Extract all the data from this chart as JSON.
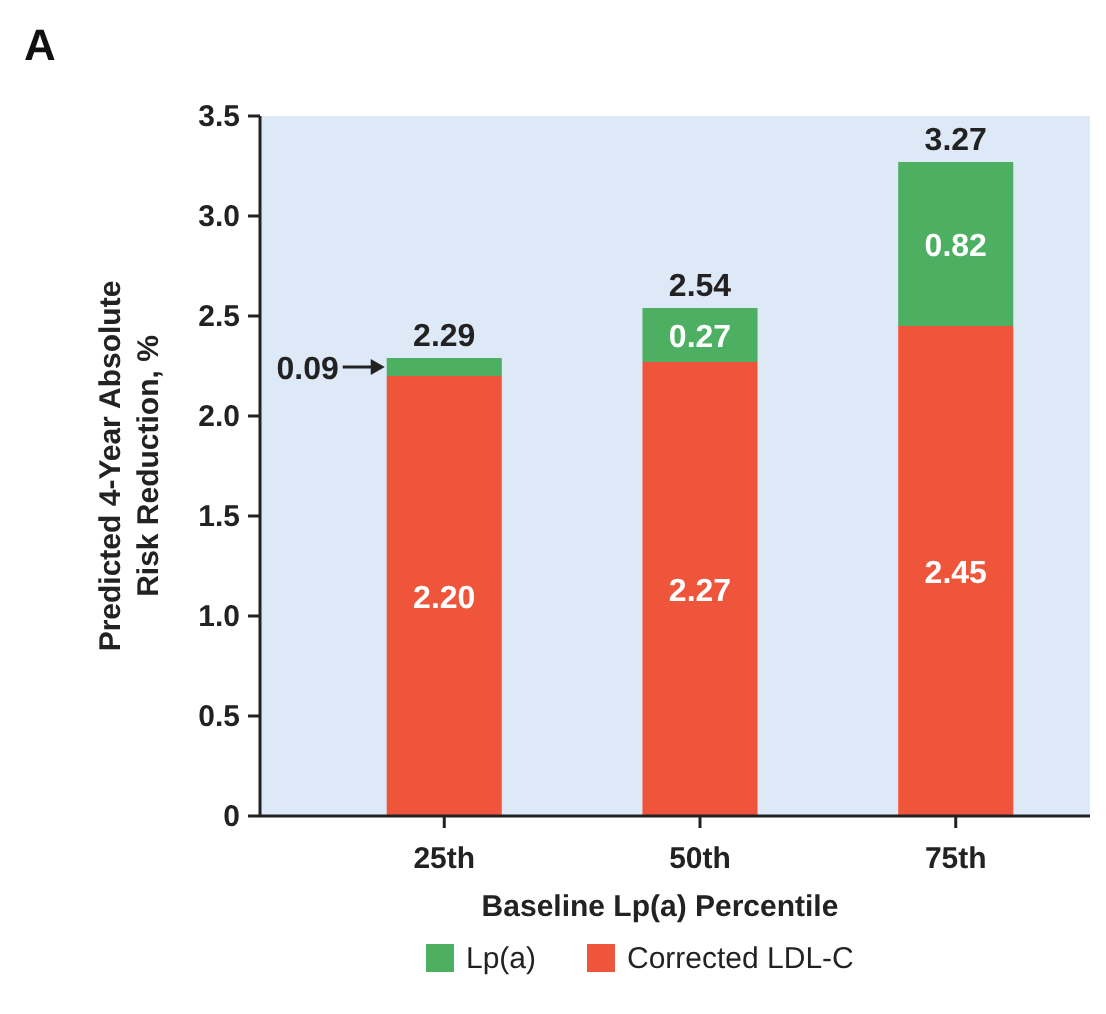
{
  "chart_data": {
    "type": "bar",
    "title": "A",
    "xlabel": "Baseline Lp(a) Percentile",
    "ylabel": "Predicted 4-Year Absolute Risk Reduction, %",
    "categories": [
      "25th",
      "50th",
      "75th"
    ],
    "stacked": true,
    "series": [
      {
        "name": "Corrected LDL-C",
        "color": "#ef553b",
        "values": [
          2.2,
          2.27,
          2.45
        ],
        "value_labels": [
          "2.20",
          "2.27",
          "2.45"
        ]
      },
      {
        "name": "Lp(a)",
        "color": "#4caf62",
        "values": [
          0.09,
          0.27,
          0.82
        ],
        "value_labels": [
          "0.09",
          "0.27",
          "0.82"
        ]
      }
    ],
    "totals": [
      "2.29",
      "2.54",
      "3.27"
    ],
    "ylim": [
      0,
      3.5
    ],
    "yticks": [
      0,
      {
        "value": 0.5,
        "label": "0.5"
      },
      {
        "value": 1,
        "label": "1.0"
      },
      {
        "value": 1.5,
        "label": "1.5"
      },
      {
        "value": 2,
        "label": "2.0"
      },
      {
        "value": 2.5,
        "label": "2.5"
      },
      {
        "value": 3,
        "label": "3.0"
      },
      {
        "value": 3.5,
        "label": "3.5"
      }
    ],
    "grid": false,
    "legend": "bottom"
  }
}
